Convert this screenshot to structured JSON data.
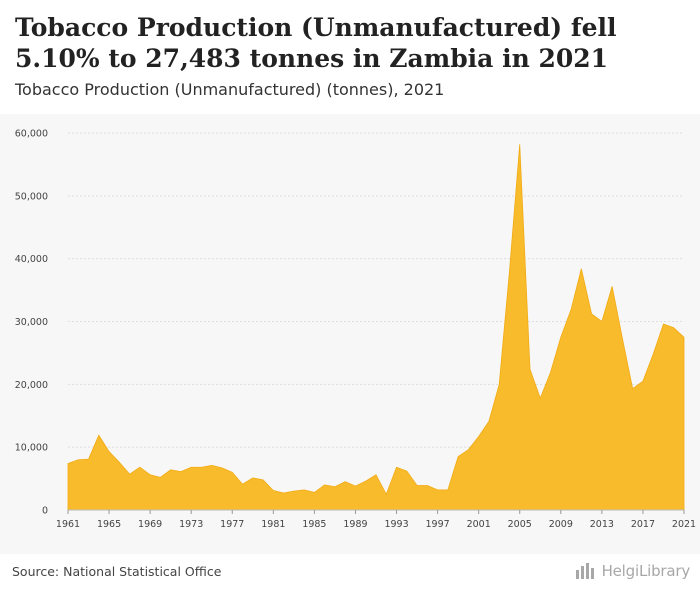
{
  "header": {
    "title": "Tobacco Production (Unmanufactured) fell 5.10% to 27,483 tonnes in Zambia in 2021",
    "subtitle": "Tobacco Production (Unmanufactured) (tonnes), 2021"
  },
  "footer": {
    "source": "Source: National Statistical Office",
    "logo_text": "HelgiLibrary",
    "logo_icon": "bar-chart-icon"
  },
  "colors": {
    "area_fill": "#f8bb2c",
    "area_stroke": "#f2ab14",
    "grid": "#dddddd",
    "plot_background": "#f7f7f7"
  },
  "chart_data": {
    "type": "area",
    "title": "Tobacco Production (Unmanufactured) (tonnes), 2021",
    "xlabel": "",
    "ylabel": "",
    "grid": true,
    "legend": "none",
    "ylim": [
      0,
      60000
    ],
    "y_ticks": [
      0,
      10000,
      20000,
      30000,
      40000,
      50000,
      60000
    ],
    "y_tick_labels": [
      "0",
      "10,000",
      "20,000",
      "30,000",
      "40,000",
      "50,000",
      "60,000"
    ],
    "x_ticks": [
      1961,
      1965,
      1969,
      1973,
      1977,
      1981,
      1985,
      1989,
      1993,
      1997,
      2001,
      2005,
      2009,
      2013,
      2017,
      2021
    ],
    "x": [
      1961,
      1962,
      1963,
      1964,
      1965,
      1966,
      1967,
      1968,
      1969,
      1970,
      1971,
      1972,
      1973,
      1974,
      1975,
      1976,
      1977,
      1978,
      1979,
      1980,
      1981,
      1982,
      1983,
      1984,
      1985,
      1986,
      1987,
      1988,
      1989,
      1990,
      1991,
      1992,
      1993,
      1994,
      1995,
      1996,
      1997,
      1998,
      1999,
      2000,
      2001,
      2002,
      2003,
      2004,
      2005,
      2006,
      2007,
      2008,
      2009,
      2010,
      2011,
      2012,
      2013,
      2014,
      2015,
      2016,
      2017,
      2018,
      2019,
      2020,
      2021
    ],
    "series": [
      {
        "values": [
          7400,
          8000,
          8100,
          11900,
          9300,
          7600,
          5700,
          6800,
          5600,
          5200,
          6400,
          6100,
          6800,
          6800,
          7100,
          6700,
          6000,
          4100,
          5100,
          4800,
          3100,
          2700,
          3000,
          3200,
          2800,
          4000,
          3700,
          4500,
          3800,
          4600,
          5600,
          2500,
          6800,
          6200,
          3900,
          3900,
          3200,
          3200,
          8500,
          9600,
          11700,
          14100,
          20000,
          38000,
          58200,
          22400,
          17800,
          21900,
          27500,
          31900,
          38400,
          31200,
          30000,
          35600,
          27300,
          19300,
          20500,
          24800,
          29600,
          29000,
          27483
        ]
      }
    ]
  }
}
